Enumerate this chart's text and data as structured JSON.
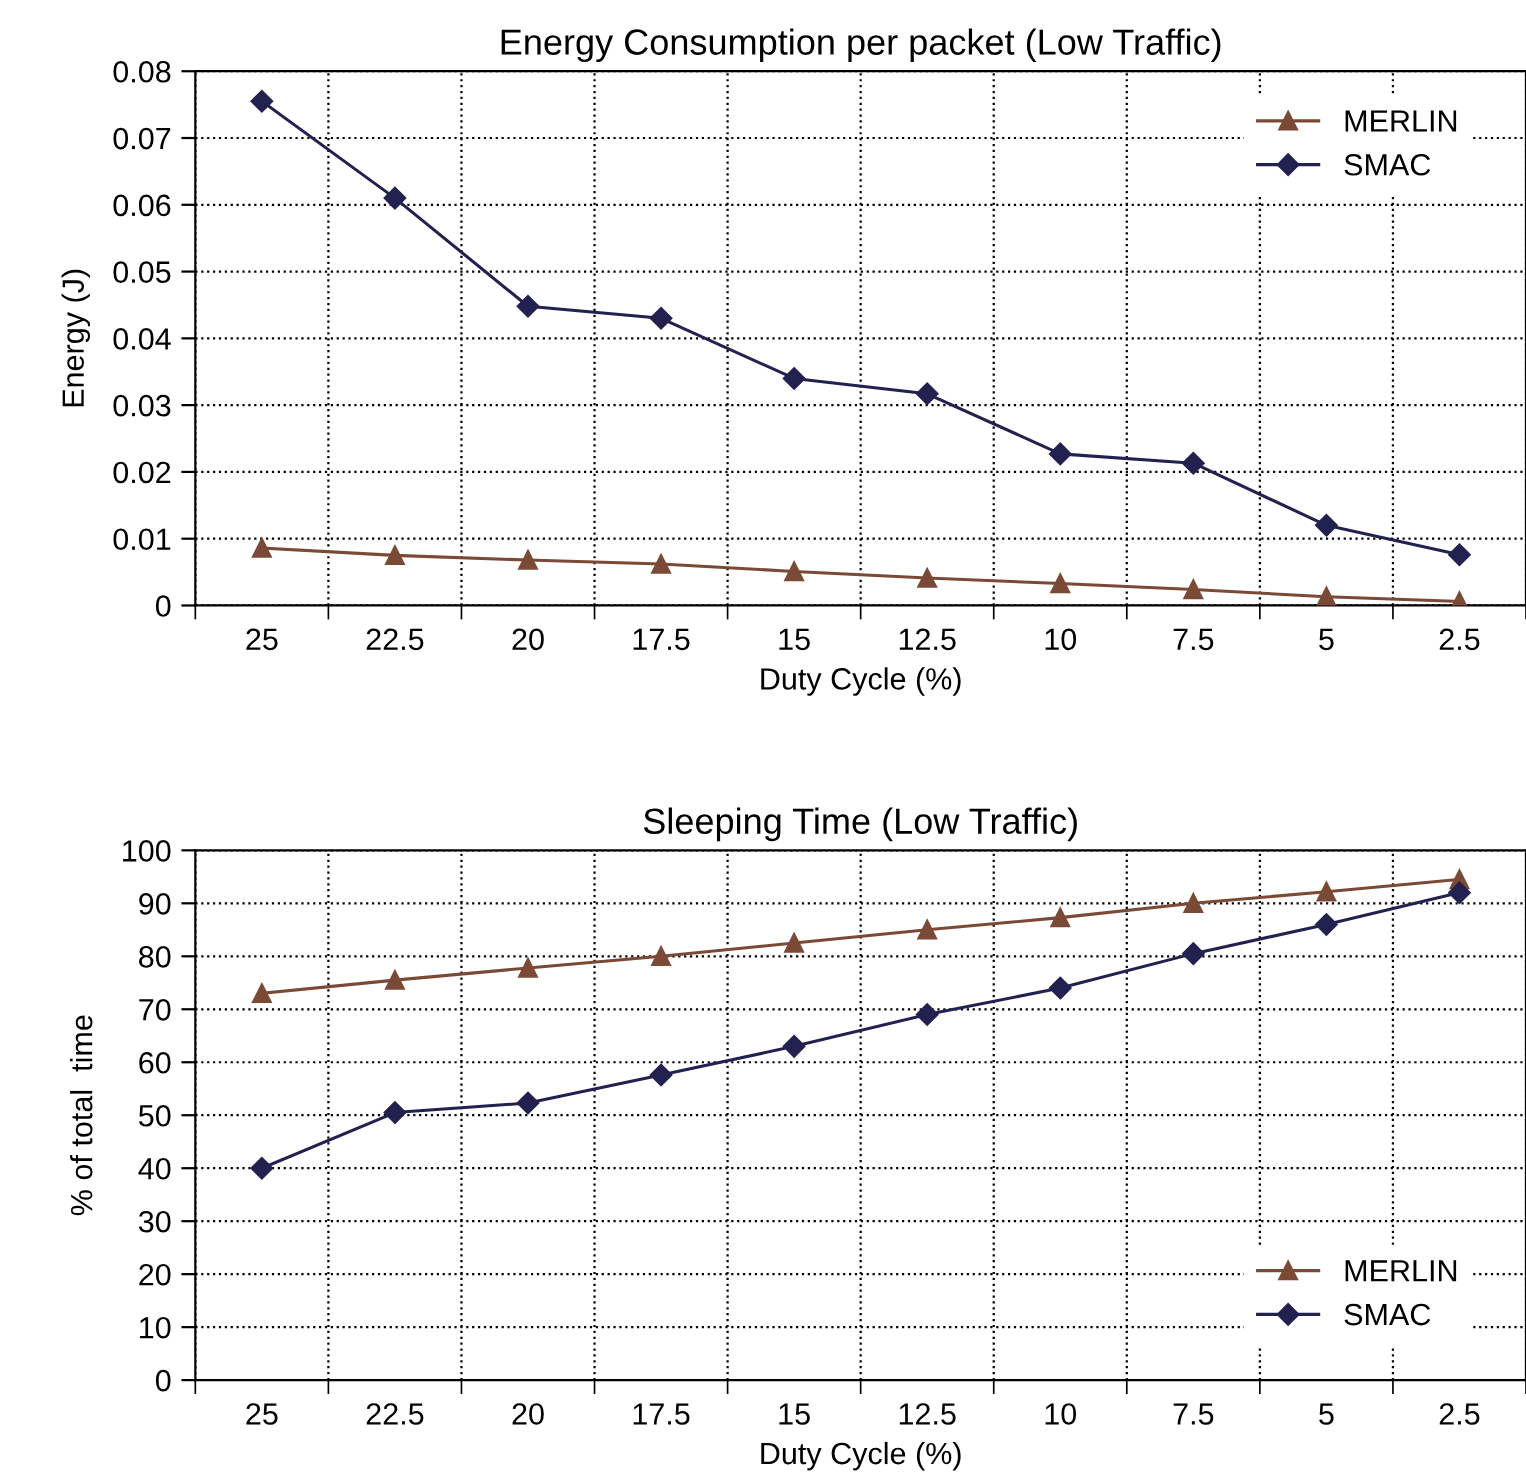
{
  "chart_data": [
    {
      "type": "line",
      "title": "Energy Consumption per packet (Low Traffic)",
      "xlabel": "Duty Cycle (%)",
      "ylabel": "Energy (J)",
      "categories": [
        "25",
        "22.5",
        "20",
        "17.5",
        "15",
        "12.5",
        "10",
        "7.5",
        "5",
        "2.5"
      ],
      "series": [
        {
          "name": "MERLIN",
          "color": "#7b4a36",
          "marker": "triangle",
          "values": [
            0.0086,
            0.0075,
            0.0068,
            0.0062,
            0.0051,
            0.0041,
            0.0033,
            0.0024,
            0.0013,
            0.0006
          ]
        },
        {
          "name": "SMAC",
          "color": "#23214f",
          "marker": "diamond",
          "values": [
            0.0755,
            0.061,
            0.0448,
            0.043,
            0.034,
            0.0317,
            0.0227,
            0.0213,
            0.012,
            0.0076
          ]
        }
      ],
      "ylim": [
        0,
        0.08
      ],
      "yticks": [
        0,
        0.01,
        0.02,
        0.03,
        0.04,
        0.05,
        0.06,
        0.07,
        0.08
      ],
      "grid": true,
      "legend": "top right"
    },
    {
      "type": "line",
      "title": "Sleeping Time (Low Traffic)",
      "xlabel": "Duty Cycle (%)",
      "ylabel": "% of total  time",
      "categories": [
        "25",
        "22.5",
        "20",
        "17.5",
        "15",
        "12.5",
        "10",
        "7.5",
        "5",
        "2.5"
      ],
      "series": [
        {
          "name": "MERLIN",
          "color": "#7b4a36",
          "marker": "triangle",
          "values": [
            73,
            75.5,
            77.8,
            80,
            82.5,
            85,
            87.3,
            90,
            92.2,
            94.5
          ]
        },
        {
          "name": "SMAC",
          "color": "#23214f",
          "marker": "diamond",
          "values": [
            40,
            50.5,
            52.3,
            57.6,
            63,
            69,
            74,
            80.5,
            86,
            92
          ]
        }
      ],
      "ylim": [
        0,
        100
      ],
      "yticks": [
        0,
        10,
        20,
        30,
        40,
        50,
        60,
        70,
        80,
        90,
        100
      ],
      "grid": true,
      "legend": "bottom right"
    }
  ]
}
